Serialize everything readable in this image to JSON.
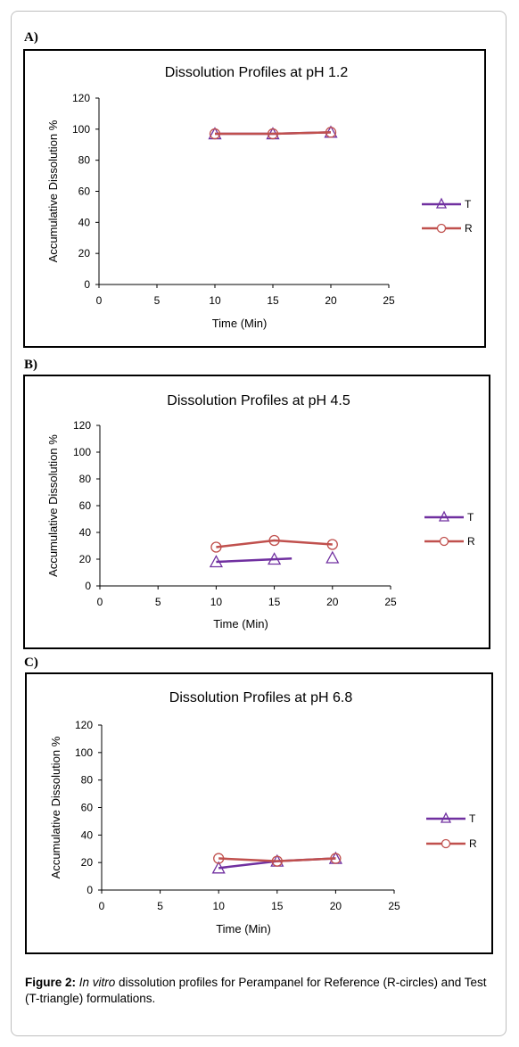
{
  "panels": [
    {
      "label": "A)"
    },
    {
      "label": "B)"
    },
    {
      "label": "C)"
    }
  ],
  "caption": {
    "figure_label": "Figure 2:",
    "italic_text": "In vitro",
    "text": " dissolution profiles for Perampanel for Reference (R-circles) and Test",
    "text_line2": "(T-triangle) formulations."
  },
  "colors": {
    "T": "#7030a0",
    "R": "#c0504d"
  },
  "chart_data": [
    {
      "type": "line",
      "title": "Dissolution Profiles at pH 1.2",
      "xlabel": "Time (Min)",
      "ylabel": "Accumulative Dissolution %",
      "xlim": [
        0,
        25
      ],
      "ylim": [
        0,
        120
      ],
      "xticks": [
        "0",
        "5",
        "10",
        "15",
        "20",
        "25"
      ],
      "yticks": [
        "0",
        "20",
        "40",
        "60",
        "80",
        "100",
        "120"
      ],
      "legend_position": "right",
      "grid": false,
      "series": [
        {
          "name": "T",
          "marker": "triangle",
          "x": [
            10,
            15,
            20
          ],
          "y": [
            97,
            97,
            98
          ],
          "line": true
        },
        {
          "name": "R",
          "marker": "circle",
          "x": [
            10,
            15,
            20
          ],
          "y": [
            97,
            97,
            98
          ],
          "line": true
        }
      ]
    },
    {
      "type": "line",
      "title": "Dissolution Profiles at pH 4.5",
      "xlabel": "Time (Min)",
      "ylabel": "Accumulative Dissolution %",
      "xlim": [
        0,
        25
      ],
      "ylim": [
        0,
        120
      ],
      "xticks": [
        "0",
        "5",
        "10",
        "15",
        "20",
        "25"
      ],
      "yticks": [
        "0",
        "20",
        "40",
        "60",
        "80",
        "100",
        "120"
      ],
      "legend_position": "right",
      "grid": false,
      "series": [
        {
          "name": "T",
          "marker": "triangle",
          "x": [
            10,
            15,
            20
          ],
          "y": [
            18,
            20,
            21
          ],
          "line": true,
          "line_x": [
            10,
            16.5
          ],
          "line_y": [
            18,
            20.5
          ]
        },
        {
          "name": "R",
          "marker": "circle",
          "x": [
            10,
            15,
            20
          ],
          "y": [
            29,
            34,
            31
          ],
          "line": true
        }
      ]
    },
    {
      "type": "line",
      "title": "Dissolution Profiles at pH 6.8",
      "xlabel": "Time (Min)",
      "ylabel": "Accumulative Dissolution %",
      "xlim": [
        0,
        25
      ],
      "ylim": [
        0,
        120
      ],
      "xticks": [
        "0",
        "5",
        "10",
        "15",
        "20",
        "25"
      ],
      "yticks": [
        "0",
        "20",
        "40",
        "60",
        "80",
        "100",
        "120"
      ],
      "legend_position": "right",
      "grid": false,
      "series": [
        {
          "name": "T",
          "marker": "triangle",
          "x": [
            10,
            15,
            20
          ],
          "y": [
            16,
            21,
            23
          ],
          "line": true
        },
        {
          "name": "R",
          "marker": "circle",
          "x": [
            10,
            15,
            20
          ],
          "y": [
            23,
            21,
            23
          ],
          "line": true
        }
      ]
    }
  ]
}
